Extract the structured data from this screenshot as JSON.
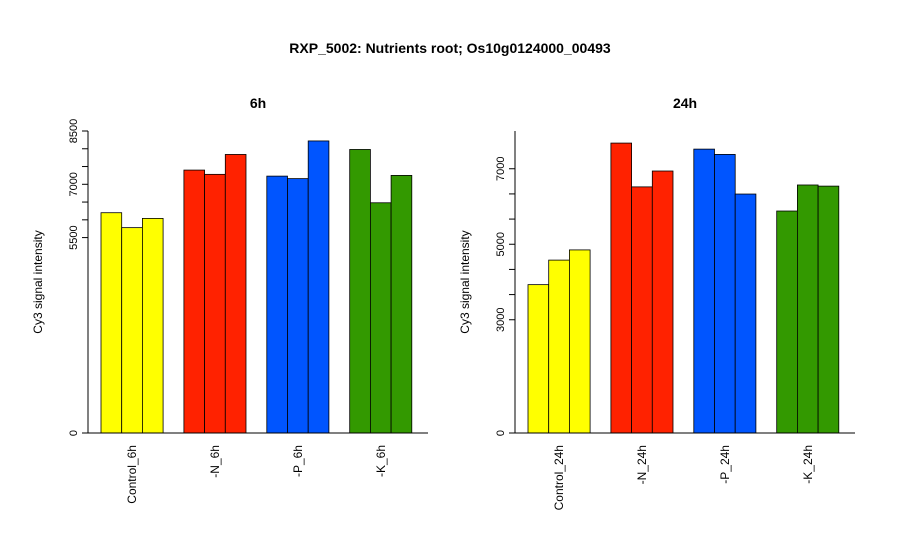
{
  "title": "RXP_5002: Nutrients root; Os10g0124000_00493",
  "chart_data": [
    {
      "type": "bar",
      "title": "6h",
      "ylabel": "Cy3 signal intensity",
      "ylim": [
        0,
        8500
      ],
      "yticks": [
        0,
        5500,
        7000,
        8500
      ],
      "categories": [
        "Control_6h",
        "-N_6h",
        "-P_6h",
        "-K_6h"
      ],
      "colors": [
        "#ffff00",
        "#ff2200",
        "#0055ff",
        "#339900"
      ],
      "groups": [
        {
          "category": "Control_6h",
          "values": [
            6200,
            5780,
            6040
          ]
        },
        {
          "category": "-N_6h",
          "values": [
            7400,
            7280,
            7840
          ]
        },
        {
          "category": "-P_6h",
          "values": [
            7230,
            7160,
            8220
          ]
        },
        {
          "category": "-K_6h",
          "values": [
            7980,
            6480,
            7250
          ]
        }
      ]
    },
    {
      "type": "bar",
      "title": "24h",
      "ylabel": "Cy3 signal intensity",
      "ylim": [
        0,
        8000
      ],
      "yticks": [
        0,
        3000,
        5000,
        7000
      ],
      "categories": [
        "Control_24h",
        "-N_24h",
        "-P_24h",
        "-K_24h"
      ],
      "colors": [
        "#ffff00",
        "#ff2200",
        "#0055ff",
        "#339900"
      ],
      "groups": [
        {
          "category": "Control_24h",
          "values": [
            3930,
            4580,
            4850
          ]
        },
        {
          "category": "-N_24h",
          "values": [
            7680,
            6520,
            6940
          ]
        },
        {
          "category": "-P_24h",
          "values": [
            7520,
            7380,
            6330
          ]
        },
        {
          "category": "-K_24h",
          "values": [
            5880,
            6570,
            6540
          ]
        }
      ]
    }
  ]
}
